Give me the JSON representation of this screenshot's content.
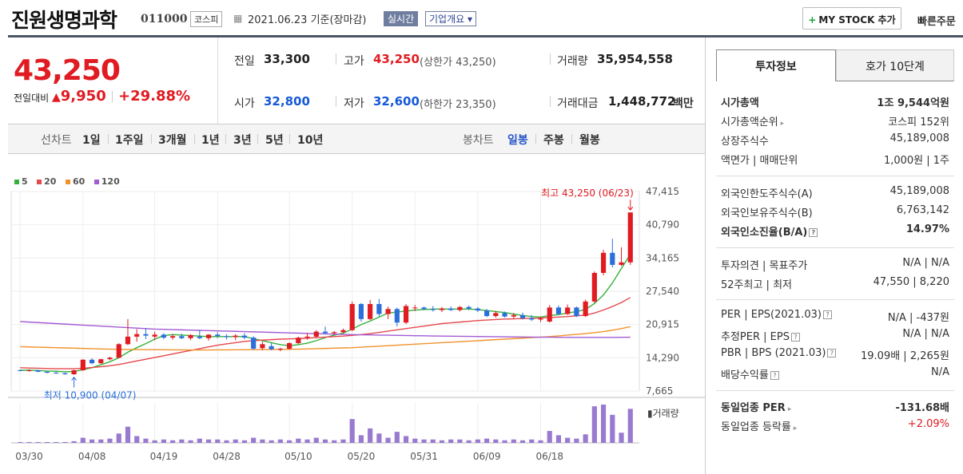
{
  "header": {
    "title": "진원생명과학",
    "code": "011000",
    "market": "코스피",
    "date": "2021.06.23 기준(장마감)",
    "realtime": "실시간",
    "corp_overview": "기업개요",
    "my_stock": "MY STOCK 추가",
    "quick_order": "빠른주문"
  },
  "quote": {
    "price": "43,250",
    "change_label": "전일대비",
    "change": "9,950",
    "change_pct": "+29.88%",
    "prev_label": "전일",
    "prev": "33,300",
    "high_label": "고가",
    "high": "43,250",
    "upper": "(상한가 43,250)",
    "volume_label": "거래량",
    "volume": "35,954,558",
    "open_label": "시가",
    "open": "32,800",
    "low_label": "저가",
    "low": "32,600",
    "lower": "(하한가 23,350)",
    "value_label": "거래대금",
    "value": "1,448,772",
    "value_unit": "백만"
  },
  "tabs": {
    "line_label": "선차트",
    "line": [
      "1일",
      "1주일",
      "3개월",
      "1년",
      "3년",
      "5년",
      "10년"
    ],
    "candle_label": "봉차트",
    "candle": [
      "일봉",
      "주봉",
      "월봉"
    ]
  },
  "right": {
    "tab1": "투자정보",
    "tab2": "호가 10단계",
    "rows": [
      {
        "l": "시가총액",
        "v": "1조 9,544억원"
      },
      {
        "l": "시가총액순위",
        "v": "코스피 152위"
      },
      {
        "l": "상장주식수",
        "v": "45,189,008"
      },
      {
        "l": "액면가 | 매매단위",
        "v": "1,000원 | 1주"
      },
      {
        "l": "외국인한도주식수(A)",
        "v": "45,189,008"
      },
      {
        "l": "외국인보유주식수(B)",
        "v": "6,763,142"
      },
      {
        "l": "외국인소진율(B/A)",
        "v": "14.97%"
      },
      {
        "l": "투자의견 | 목표주가",
        "v": "N/A | N/A"
      },
      {
        "l": "52주최고 | 최저",
        "v": "47,550 | 8,220"
      },
      {
        "l": "PER | EPS(2021.03)",
        "v": "N/A | -437원"
      },
      {
        "l": "추정PER | EPS",
        "v": "N/A | N/A"
      },
      {
        "l": "PBR | BPS (2021.03)",
        "v": "19.09배 | 2,265원"
      },
      {
        "l": "배당수익률",
        "v": "N/A"
      },
      {
        "l": "동일업종 PER",
        "v": "-131.68배"
      },
      {
        "l": "동일업종 등락률",
        "v": "+2.09%"
      }
    ]
  },
  "chart_data": {
    "type": "candlestick",
    "legend": [
      "5",
      "20",
      "60",
      "120"
    ],
    "legend_colors": [
      "#35b13b",
      "#e5484d",
      "#f0922b",
      "#a25bd4"
    ],
    "up_color": "#e01b22",
    "down_color": "#2a6fdb",
    "yticks": [
      "47,415",
      "40,790",
      "34,165",
      "27,540",
      "20,915",
      "14,290",
      "7,665"
    ],
    "ylim": [
      7665,
      47415
    ],
    "xticks": [
      "03/30",
      "04/08",
      "04/19",
      "04/28",
      "05/10",
      "05/20",
      "05/31",
      "06/09",
      "06/18"
    ],
    "high_note": "최고 43,250 (06/23)",
    "low_note": "최저 10,900 (04/07)",
    "volume_label": "거래량",
    "candles": [
      [
        11800,
        11900,
        11600,
        11700
      ],
      [
        11700,
        12000,
        11500,
        11800
      ],
      [
        11800,
        11900,
        11400,
        11500
      ],
      [
        11500,
        11600,
        11200,
        11300
      ],
      [
        11300,
        11500,
        11100,
        11200
      ],
      [
        11200,
        11300,
        10900,
        11000
      ],
      [
        11000,
        11900,
        10900,
        11800
      ],
      [
        11800,
        14000,
        11700,
        13900
      ],
      [
        13900,
        14200,
        13000,
        13200
      ],
      [
        13200,
        14100,
        13100,
        14000
      ],
      [
        14000,
        14500,
        13800,
        14300
      ],
      [
        14300,
        17200,
        14200,
        17000
      ],
      [
        17000,
        22000,
        16800,
        18500
      ],
      [
        18500,
        20000,
        17500,
        19000
      ],
      [
        19000,
        20200,
        18000,
        18700
      ],
      [
        18500,
        19500,
        17800,
        18900
      ],
      [
        18900,
        19200,
        18000,
        18300
      ],
      [
        18300,
        19000,
        17900,
        18600
      ],
      [
        18600,
        19100,
        18000,
        18200
      ],
      [
        18200,
        19000,
        17800,
        18800
      ],
      [
        18500,
        19800,
        18000,
        18200
      ],
      [
        18200,
        19000,
        17700,
        18900
      ],
      [
        18900,
        19400,
        18200,
        18600
      ],
      [
        18600,
        19000,
        17900,
        18400
      ],
      [
        18400,
        19000,
        17800,
        18700
      ],
      [
        18700,
        19200,
        18000,
        18300
      ],
      [
        18300,
        18600,
        15900,
        16100
      ],
      [
        16200,
        17500,
        15800,
        17000
      ],
      [
        16600,
        17200,
        15800,
        16000
      ],
      [
        15900,
        16300,
        15600,
        16100
      ],
      [
        16100,
        17400,
        15900,
        17200
      ],
      [
        17200,
        18500,
        17000,
        18300
      ],
      [
        18300,
        19200,
        17900,
        18500
      ],
      [
        18500,
        19800,
        18200,
        19500
      ],
      [
        19500,
        20500,
        19000,
        19200
      ],
      [
        19200,
        19600,
        18900,
        19400
      ],
      [
        19400,
        20100,
        19200,
        19800
      ],
      [
        19800,
        25500,
        19600,
        25000
      ],
      [
        25000,
        25200,
        21500,
        22000
      ],
      [
        22000,
        25800,
        21800,
        25000
      ],
      [
        25000,
        26000,
        22500,
        23000
      ],
      [
        23000,
        24500,
        22000,
        24000
      ],
      [
        24000,
        24300,
        20500,
        21300
      ],
      [
        21300,
        25000,
        21000,
        24600
      ],
      [
        24200,
        24800,
        23600,
        24300
      ],
      [
        24300,
        24500,
        23800,
        24000
      ],
      [
        24000,
        24600,
        23500,
        23800
      ],
      [
        23800,
        24400,
        23400,
        24100
      ],
      [
        24100,
        24500,
        23600,
        23800
      ],
      [
        23800,
        24600,
        23500,
        24400
      ],
      [
        24400,
        24700,
        23800,
        24100
      ],
      [
        24100,
        24400,
        23400,
        23700
      ],
      [
        23700,
        24000,
        22400,
        22600
      ],
      [
        22600,
        23600,
        22300,
        23200
      ],
      [
        23200,
        23500,
        22300,
        22500
      ],
      [
        22500,
        23200,
        22100,
        22800
      ],
      [
        22800,
        23300,
        21900,
        22200
      ],
      [
        22200,
        22800,
        21600,
        21900
      ],
      [
        21900,
        22500,
        21400,
        22100
      ],
      [
        21500,
        24800,
        21300,
        24300
      ],
      [
        24300,
        24700,
        22800,
        23000
      ],
      [
        23000,
        24900,
        22800,
        24300
      ],
      [
        24300,
        24500,
        22400,
        22600
      ],
      [
        22600,
        25900,
        22400,
        25500
      ],
      [
        25500,
        31500,
        25200,
        31200
      ],
      [
        31200,
        35800,
        30700,
        35200
      ],
      [
        35200,
        38000,
        32300,
        32800
      ],
      [
        32800,
        36300,
        32600,
        33300
      ],
      [
        33300,
        43250,
        32800,
        43250
      ]
    ],
    "volumes": [
      1,
      1,
      1,
      1,
      1,
      1,
      2,
      6,
      4,
      4,
      5,
      11,
      19,
      8,
      5,
      3,
      4,
      3,
      4,
      3,
      5,
      4,
      4,
      3,
      4,
      3,
      6,
      4,
      3,
      4,
      3,
      5,
      4,
      6,
      4,
      3,
      4,
      28,
      9,
      17,
      11,
      6,
      13,
      8,
      5,
      4,
      4,
      3,
      4,
      4,
      3,
      4,
      5,
      4,
      3,
      4,
      3,
      4,
      3,
      14,
      9,
      6,
      5,
      10,
      43,
      45,
      33,
      12,
      40
    ],
    "ma5": [
      11800,
      11800,
      11750,
      11650,
      11600,
      11500,
      11550,
      11900,
      12300,
      12900,
      13500,
      14300,
      15400,
      16300,
      17100,
      18000,
      18700,
      18900,
      18800,
      18700,
      18600,
      18500,
      18500,
      18500,
      18500,
      18500,
      18100,
      17700,
      17300,
      16900,
      16700,
      16900,
      17200,
      17700,
      18300,
      18800,
      19200,
      20000,
      20900,
      21600,
      22400,
      23200,
      23400,
      23600,
      23800,
      23900,
      24000,
      24000,
      24000,
      24000,
      24000,
      23900,
      23700,
      23500,
      23300,
      23000,
      22700,
      22500,
      22400,
      22700,
      22900,
      23200,
      23500,
      23900,
      25100,
      26800,
      29200,
      32100,
      34900
    ],
    "ma20": [
      12300,
      12250,
      12200,
      12150,
      12100,
      12100,
      12100,
      12200,
      12350,
      12500,
      12700,
      12950,
      13300,
      13650,
      14000,
      14350,
      14700,
      15050,
      15400,
      15750,
      16100,
      16450,
      16800,
      17050,
      17300,
      17550,
      17700,
      17800,
      17900,
      18000,
      18050,
      18100,
      18200,
      18300,
      18400,
      18500,
      18600,
      18750,
      18900,
      19100,
      19350,
      19600,
      19850,
      20100,
      20350,
      20600,
      20850,
      21100,
      21250,
      21400,
      21550,
      21700,
      21800,
      21900,
      22000,
      22050,
      22100,
      22150,
      22200,
      22300,
      22400,
      22500,
      22650,
      22800,
      23200,
      23800,
      24500,
      25300,
      26300
    ],
    "ma60": [
      16500,
      16450,
      16400,
      16350,
      16300,
      16250,
      16200,
      16150,
      16100,
      16050,
      16000,
      15980,
      15950,
      15930,
      15900,
      15900,
      15880,
      15870,
      15860,
      15850,
      15850,
      15850,
      15860,
      15870,
      15880,
      15890,
      15900,
      15920,
      15940,
      15960,
      15980,
      16000,
      16050,
      16100,
      16150,
      16200,
      16250,
      16300,
      16400,
      16500,
      16600,
      16700,
      16800,
      16900,
      17000,
      17100,
      17200,
      17300,
      17400,
      17500,
      17600,
      17700,
      17800,
      17900,
      18000,
      18100,
      18200,
      18300,
      18400,
      18500,
      18650,
      18800,
      18950,
      19100,
      19300,
      19500,
      19800,
      20100,
      20500
    ],
    "ma120": [
      21500,
      21400,
      21300,
      21200,
      21100,
      21000,
      20900,
      20800,
      20700,
      20600,
      20500,
      20400,
      20300,
      20200,
      20100,
      20000,
      19950,
      19900,
      19850,
      19800,
      19750,
      19700,
      19650,
      19600,
      19550,
      19500,
      19450,
      19400,
      19350,
      19300,
      19250,
      19200,
      19150,
      19100,
      19050,
      19000,
      18950,
      18900,
      18870,
      18840,
      18810,
      18780,
      18750,
      18720,
      18690,
      18660,
      18630,
      18600,
      18580,
      18560,
      18540,
      18520,
      18500,
      18480,
      18460,
      18440,
      18420,
      18400,
      18390,
      18380,
      18370,
      18360,
      18350,
      18340,
      18340,
      18340,
      18350,
      18360,
      18380
    ]
  }
}
